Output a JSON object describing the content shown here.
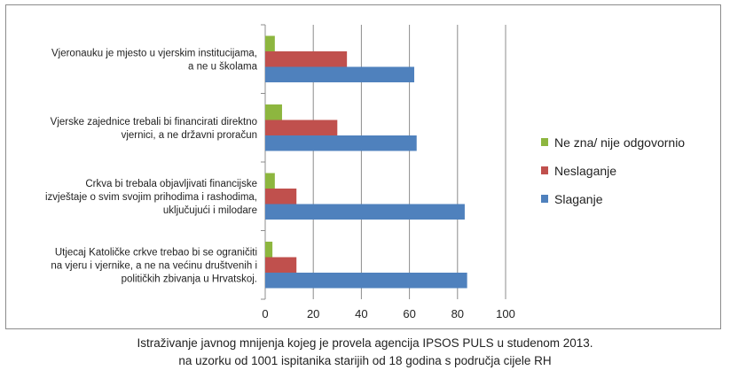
{
  "chart_data": {
    "type": "bar",
    "orientation": "horizontal",
    "categories": [
      [
        "Vjeronauku je mjesto u vjerskim institucijama,",
        "a ne u školama"
      ],
      [
        "Vjerske zajednice trebali bi financirati direktno",
        "vjernici, a ne državni proračun"
      ],
      [
        "Crkva bi trebala objavljivati financijske",
        "izvještaje o svim svojim prihodima i rashodima,",
        "uključujući i milodare"
      ],
      [
        "Utjecaj Katoličke crkve trebao bi se ograničiti",
        "na vjeru i vjernike, a ne na većinu društvenih i",
        "političkih zbivanja u Hrvatskoj."
      ]
    ],
    "series": [
      {
        "name": "Ne zna/ nije odgovornio",
        "color": "#8db63f",
        "values": [
          4,
          7,
          4,
          3
        ]
      },
      {
        "name": "Neslaganje",
        "color": "#c0504d",
        "values": [
          34,
          30,
          13,
          13
        ]
      },
      {
        "name": "Slaganje",
        "color": "#4f81bd",
        "values": [
          62,
          63,
          83,
          84
        ]
      }
    ],
    "legend_order": [
      0,
      1,
      2
    ],
    "legend_position": "right",
    "xlim": [
      0,
      100
    ],
    "xticks": [
      0,
      20,
      40,
      60,
      80,
      100
    ],
    "grid": "vertical major gridlines"
  },
  "caption": {
    "line1": "Istraživanje javnog mnijenja kojeg je provela agencija IPSOS PULS u studenom 2013.",
    "line2": "na uzorku od 1001 ispitanika starijih od 18 godina s područja cijele RH"
  }
}
